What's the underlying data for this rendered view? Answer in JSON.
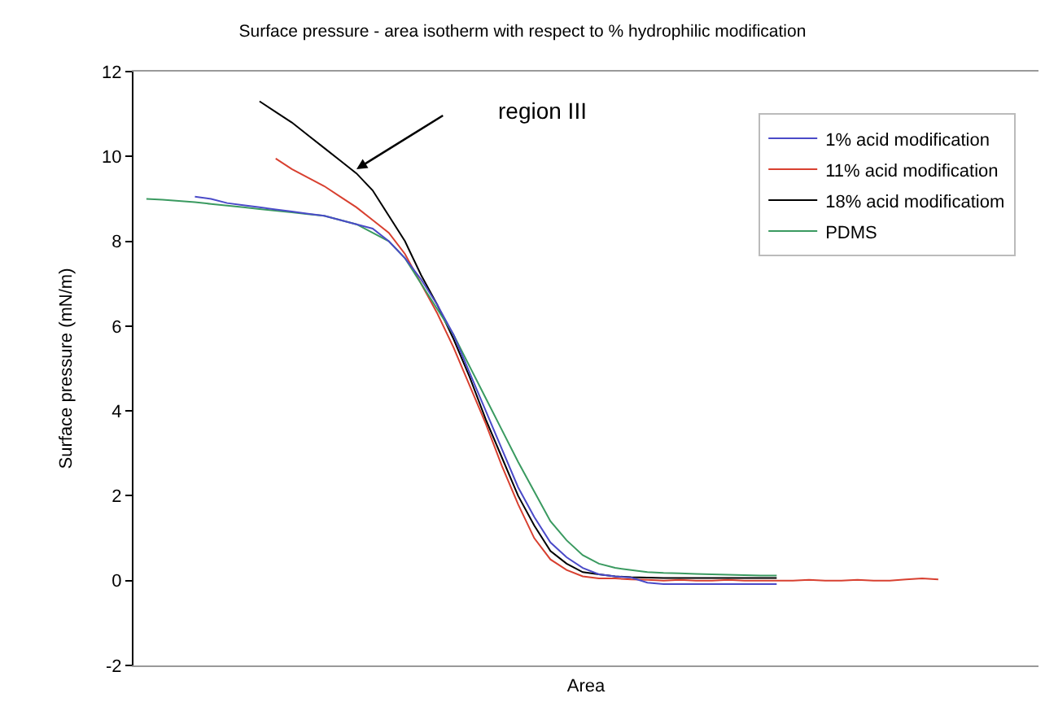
{
  "chart_data": {
    "type": "line",
    "title": "Surface pressure - area isotherm with respect to % hydrophilic modification",
    "xlabel": "Area",
    "ylabel": "Surface pressure (mN/m)",
    "categories": [
      null,
      null,
      null,
      null,
      null,
      null,
      null,
      null,
      null,
      null,
      null,
      null,
      null,
      null,
      null,
      null,
      null,
      null,
      null,
      null,
      null,
      null,
      null,
      null,
      null,
      null,
      null,
      null,
      null,
      null,
      null,
      null,
      null,
      null,
      null,
      null,
      null,
      null,
      null,
      null,
      null,
      null,
      null,
      null,
      null,
      null,
      null,
      null,
      null,
      null
    ],
    "series": [
      {
        "name": "1% acid modification",
        "color": "#4a4ac8",
        "values": [
          null,
          null,
          null,
          9.05,
          9.0,
          8.9,
          8.85,
          8.8,
          8.75,
          8.7,
          8.65,
          8.6,
          8.5,
          8.4,
          8.3,
          8.0,
          7.6,
          7.1,
          6.5,
          5.8,
          4.9,
          4.0,
          3.1,
          2.2,
          1.5,
          0.9,
          0.55,
          0.3,
          0.15,
          0.1,
          0.07,
          -0.05,
          -0.08,
          -0.08,
          -0.08,
          -0.08,
          -0.08,
          -0.08,
          -0.08,
          -0.08,
          null,
          null,
          null,
          null,
          null,
          null,
          null,
          null,
          null,
          null
        ]
      },
      {
        "name": "11% acid modification",
        "color": "#d84030",
        "values": [
          null,
          null,
          null,
          null,
          null,
          null,
          null,
          null,
          9.95,
          9.7,
          9.5,
          9.3,
          9.05,
          8.8,
          8.5,
          8.2,
          7.7,
          7.0,
          6.3,
          5.5,
          4.6,
          3.7,
          2.7,
          1.8,
          1.0,
          0.5,
          0.25,
          0.1,
          0.05,
          0.05,
          0.03,
          0.02,
          0.0,
          0.02,
          0.0,
          0.0,
          0.02,
          0.0,
          0.0,
          0.0,
          0.0,
          0.02,
          0.0,
          0.0,
          0.02,
          0.0,
          0.0,
          0.03,
          0.05,
          0.03
        ]
      },
      {
        "name": "18% acid modificatiom",
        "color": "#000000",
        "values": [
          null,
          null,
          null,
          null,
          null,
          null,
          null,
          11.3,
          11.05,
          10.8,
          10.5,
          10.2,
          9.9,
          9.6,
          9.2,
          8.6,
          8.0,
          7.2,
          6.5,
          5.7,
          4.8,
          3.8,
          2.9,
          2.0,
          1.3,
          0.7,
          0.4,
          0.2,
          0.15,
          0.1,
          0.08,
          0.07,
          0.06,
          0.06,
          0.06,
          0.06,
          0.06,
          0.06,
          0.06,
          0.06,
          null,
          null,
          null,
          null,
          null,
          null,
          null,
          null,
          null,
          null
        ]
      },
      {
        "name": "PDMS",
        "color": "#3a9a60",
        "values": [
          9.0,
          8.98,
          8.95,
          8.92,
          8.88,
          8.84,
          8.8,
          8.76,
          8.72,
          8.68,
          8.64,
          8.6,
          8.5,
          8.4,
          8.2,
          8.0,
          7.6,
          7.0,
          6.4,
          5.8,
          5.05,
          4.3,
          3.55,
          2.8,
          2.1,
          1.4,
          0.95,
          0.6,
          0.4,
          0.3,
          0.25,
          0.2,
          0.18,
          0.17,
          0.16,
          0.15,
          0.14,
          0.13,
          0.12,
          0.12,
          null,
          null,
          null,
          null,
          null,
          null,
          null,
          null,
          null,
          null
        ]
      }
    ],
    "ylim": [
      -2,
      12
    ],
    "yticks": [
      -2,
      0,
      2,
      4,
      6,
      8,
      10,
      12
    ],
    "grid": false,
    "legend": "top right",
    "tick_labels": "y",
    "line_style": "solid",
    "marker": "none",
    "annotations": [
      "region III"
    ]
  }
}
